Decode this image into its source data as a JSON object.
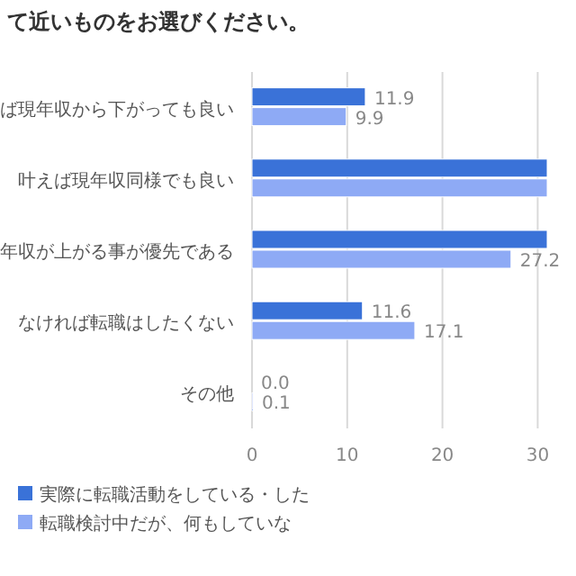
{
  "chart_data": {
    "type": "bar",
    "orientation": "horizontal",
    "title": "て近いものをお選びください。",
    "categories": [
      "ば現年収から下がっても良い",
      "叶えば現年収同様でも良い",
      "年収が上がる事が優先である",
      "なければ転職はしたくない",
      "その他"
    ],
    "series": [
      {
        "name": "実際に転職活動をしている・した",
        "color": "#3a72d8",
        "values": [
          11.9,
          31,
          31,
          11.6,
          0.0
        ],
        "value_labels": [
          "11.9",
          null,
          null,
          "11.6",
          "0.0"
        ]
      },
      {
        "name": "転職検討中だが、何もしていな",
        "color": "#8eaaf5",
        "values": [
          9.9,
          31,
          27.2,
          17.1,
          0.1
        ],
        "value_labels": [
          "9.9",
          null,
          "27.2",
          "17.1",
          "0.1"
        ]
      }
    ],
    "xlim": [
      0,
      31
    ],
    "xticks": [
      0,
      10,
      20,
      30
    ],
    "grid": "x",
    "legend": "bottom"
  }
}
